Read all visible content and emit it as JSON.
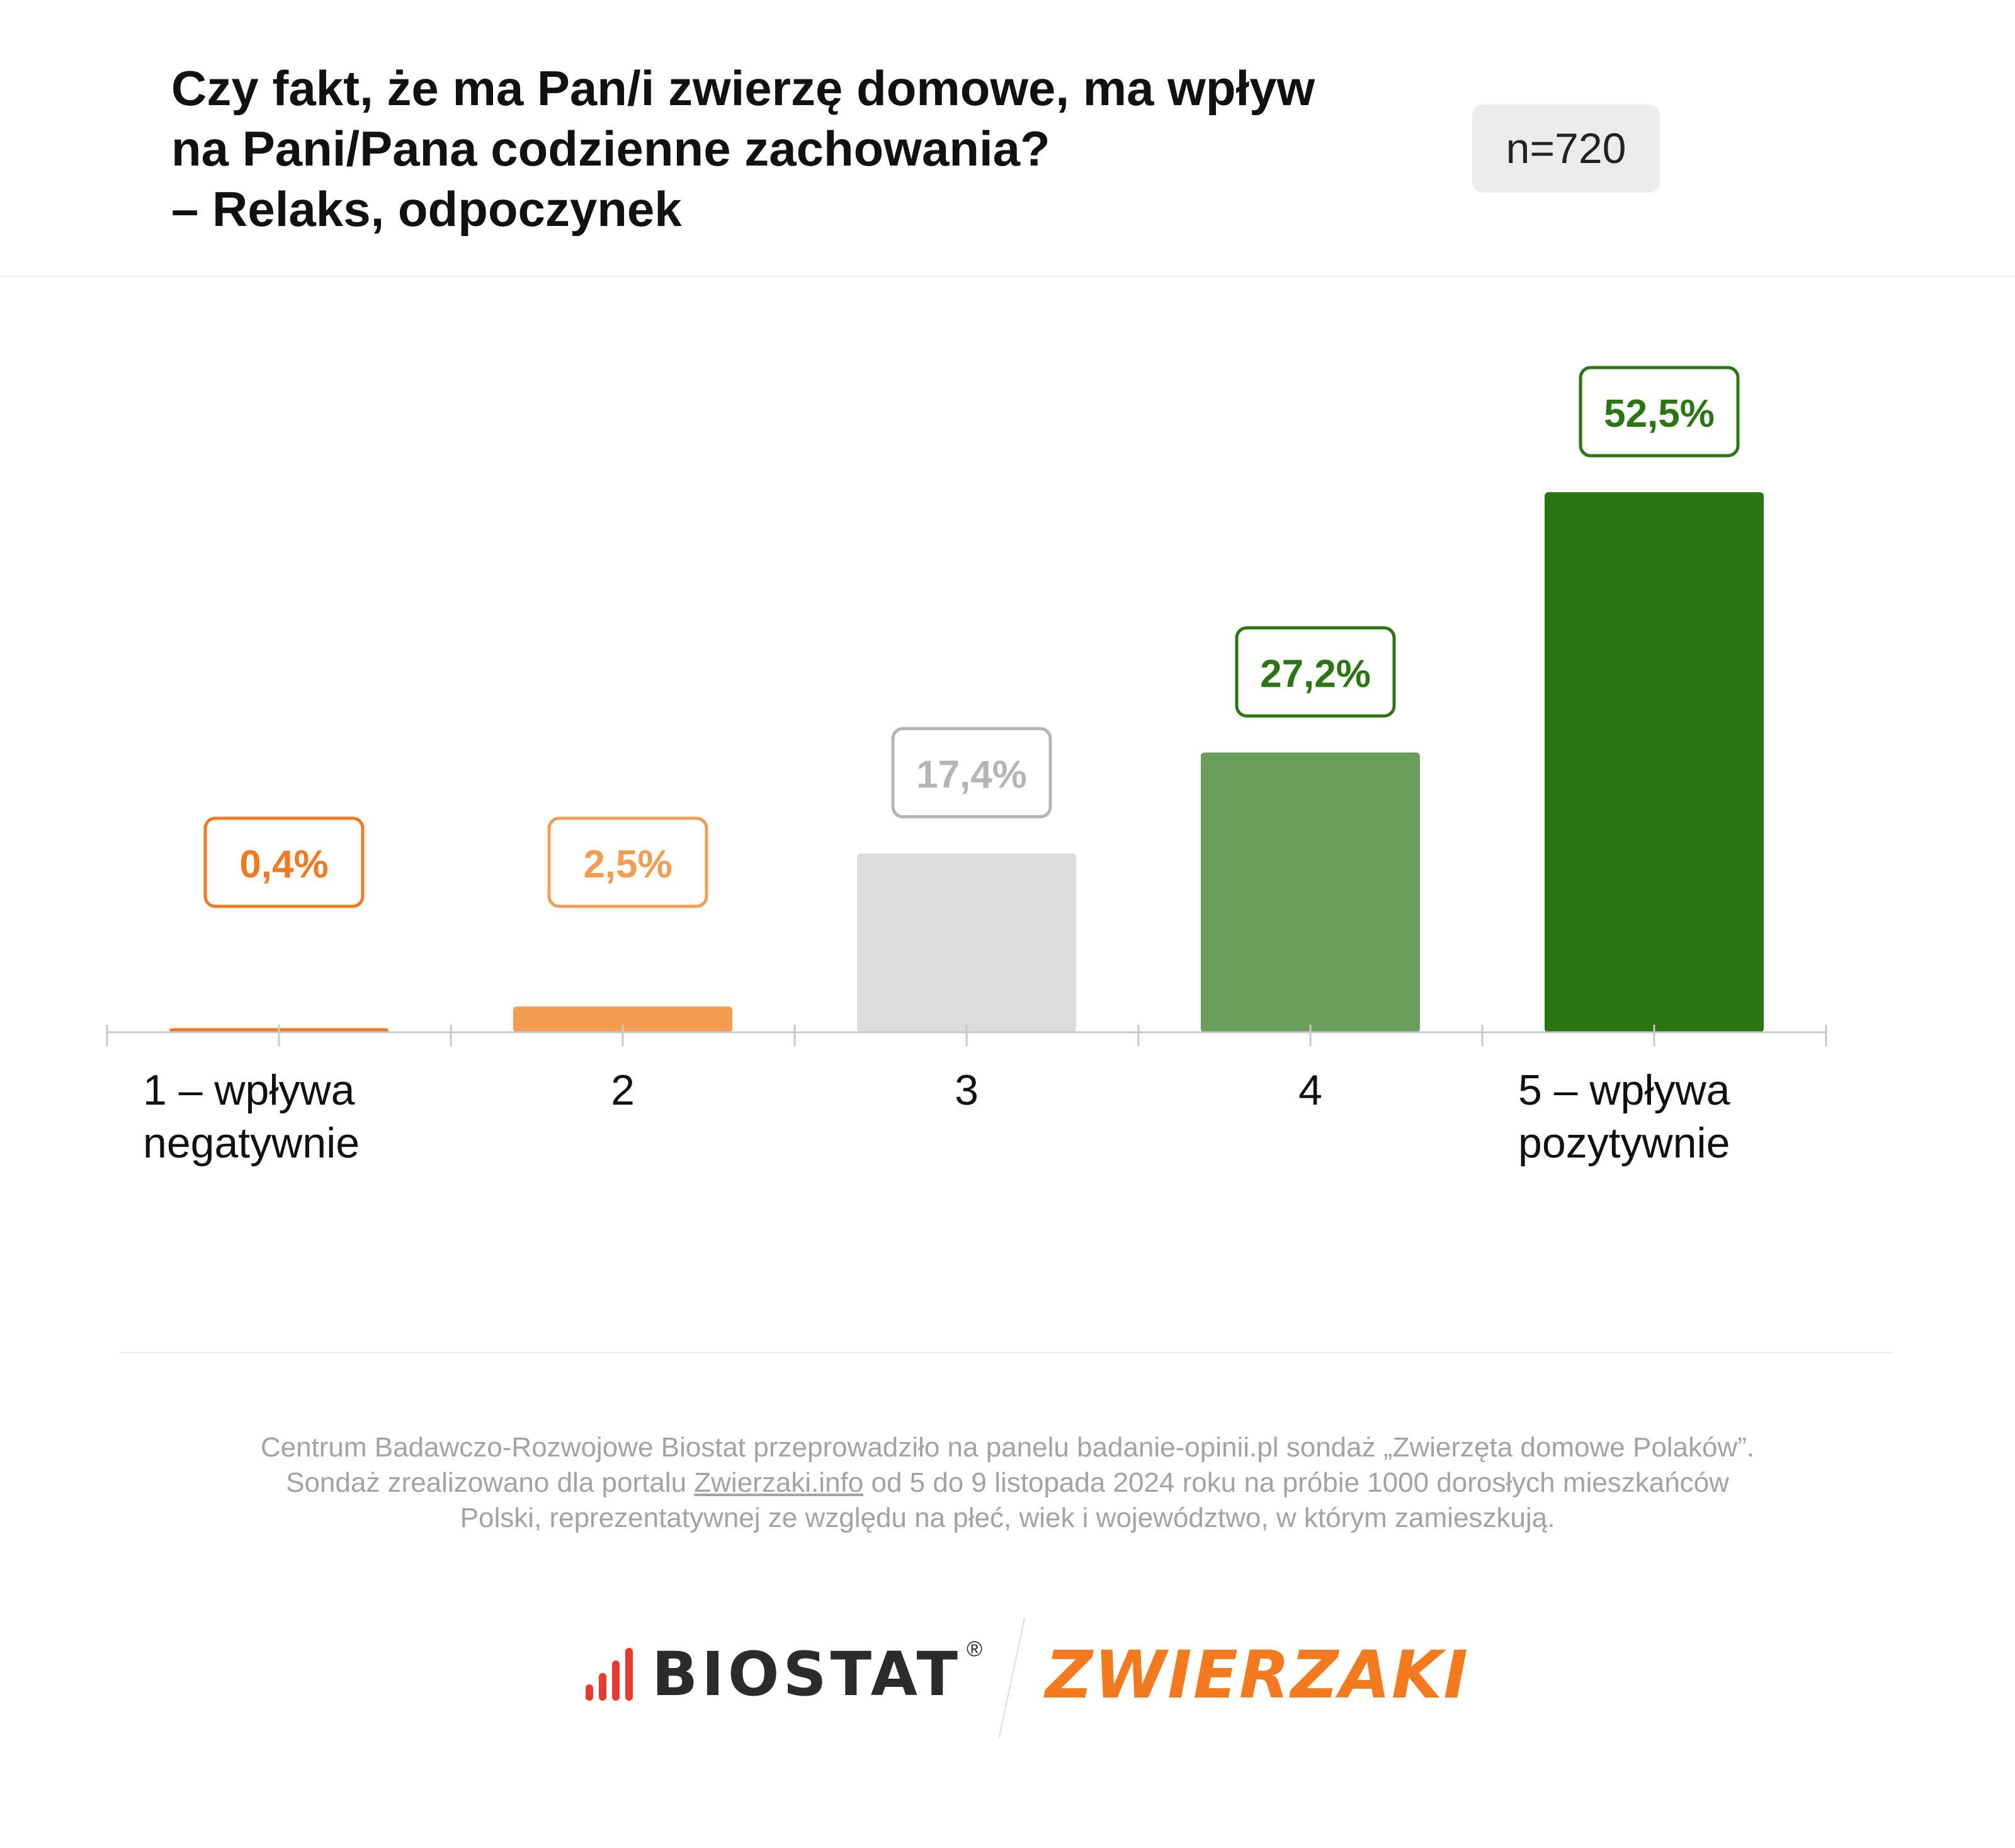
{
  "header": {
    "title_lines": [
      "Czy fakt, że ma Pan/i zwierzę domowe, ma wpływ",
      "na Pani/Pana codzienne zachowania?",
      "– Relaks, odpoczynek"
    ],
    "sample": "n=720"
  },
  "chart_data": {
    "type": "bar",
    "categories": [
      "1 – wpływa negatywnie",
      "2",
      "3",
      "4",
      "5 – wpływa pozytywnie"
    ],
    "category_lines": [
      [
        "1 – wpływa",
        "negatywnie"
      ],
      [
        "2"
      ],
      [
        "3"
      ],
      [
        "4"
      ],
      [
        "5 – wpływa",
        "pozytywnie"
      ]
    ],
    "values": [
      0.4,
      2.5,
      17.4,
      27.2,
      52.5
    ],
    "value_labels": [
      "0,4%",
      "2,5%",
      "17,4%",
      "27,2%",
      "52,5%"
    ],
    "unit": "%",
    "ylim": [
      0,
      52.5
    ],
    "grid": false,
    "legend": "none",
    "bar_colors": [
      "#ef7a21",
      "#f39c52",
      "#dcdcdc",
      "#6a9e5c",
      "#2b7515"
    ],
    "label_colors": [
      "#ef7a21",
      "#f39c52",
      "#b5b5b5",
      "#2b7515",
      "#2b7515"
    ]
  },
  "footnote": {
    "line1": "Centrum Badawczo-Rozwojowe Biostat przeprowadziło na panelu badanie-opinii.pl sondaż „Zwierzęta domowe Polaków”.",
    "line2_before": "Sondaż zrealizowano dla portalu ",
    "line2_link": "Zwierzaki.info",
    "line2_after": " od 5 do 9 listopada 2024 roku na próbie 1000 dorosłych mieszkańców",
    "line3": "Polski, reprezentatywnej ze względu na płeć, wiek i województwo, w którym zamieszkują."
  },
  "logos": {
    "biostat": "BIOSTAT",
    "biostat_mark": "®",
    "zwierzaki": "ZWIERZAKI",
    "biostat_color": "#e83a2e",
    "zwierzaki_color": "#f47a1f"
  }
}
